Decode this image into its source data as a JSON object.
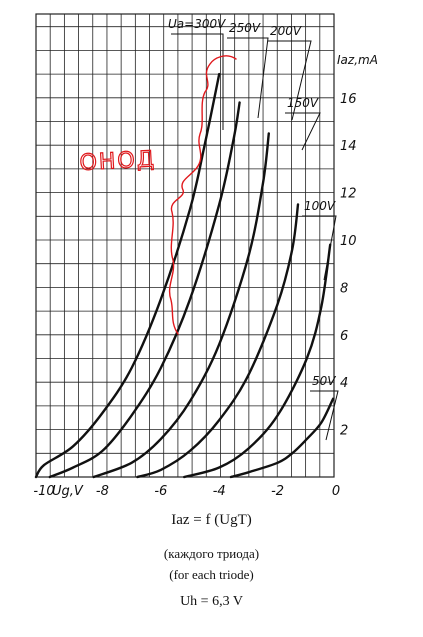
{
  "chart_data": {
    "type": "line",
    "xlabel": "Ug,V",
    "ylabel": "Iaz,mA",
    "xlim": [
      -10,
      0
    ],
    "ylim": [
      0,
      18
    ],
    "x_ticks": [
      "-10",
      "-8",
      "-6",
      "-4",
      "-2",
      "0"
    ],
    "y_ticks": [
      "2",
      "4",
      "6",
      "8",
      "10",
      "12",
      "14",
      "16"
    ],
    "grid": true,
    "series": [
      {
        "name": "Ua=300V",
        "x": [
          -11.3,
          -10,
          -9,
          -8,
          -7,
          -6,
          -5,
          -4.5,
          -4
        ],
        "y": [
          0,
          0.5,
          1.3,
          2.7,
          4.6,
          7.5,
          11.3,
          14,
          17
        ]
      },
      {
        "name": "250V",
        "x": [
          -9.8,
          -9,
          -8,
          -7,
          -6,
          -5,
          -4,
          -3.5,
          -3.3
        ],
        "y": [
          0,
          0.4,
          1.1,
          2.6,
          4.6,
          7.5,
          11.5,
          14.3,
          15.8
        ]
      },
      {
        "name": "200V",
        "x": [
          -8.3,
          -7,
          -6,
          -5,
          -4,
          -3,
          -2.5,
          -2.3
        ],
        "y": [
          0,
          0.6,
          1.6,
          3.2,
          5.6,
          9.3,
          12.4,
          14.5
        ]
      },
      {
        "name": "150V",
        "x": [
          -6.8,
          -6,
          -5,
          -4,
          -3,
          -2,
          -1.5,
          -1.3
        ],
        "y": [
          0,
          0.3,
          1.1,
          2.4,
          4.3,
          7.3,
          9.6,
          11.5
        ]
      },
      {
        "name": "100V",
        "x": [
          -5.2,
          -4,
          -3,
          -2,
          -1,
          -0.5,
          -0.2
        ],
        "y": [
          0,
          0.4,
          1.2,
          2.6,
          5,
          7.2,
          9.8
        ]
      },
      {
        "name": "50V",
        "x": [
          -3.6,
          -3,
          -2,
          -1.5,
          -1,
          -0.5,
          -0.1
        ],
        "y": [
          0,
          0.2,
          0.6,
          1,
          1.6,
          2.3,
          3.3
        ]
      }
    ],
    "curve_labels": [
      "Ua=300V",
      "250V",
      "200V",
      "150V",
      "100V",
      "50V"
    ],
    "annotation": "ОНОД",
    "annotation_color": "#e0181c",
    "line_color": "#111111",
    "grid_color": "#222222"
  },
  "caption": {
    "formula": "Iaz = f (UgT)",
    "russian": "(каждого триода)",
    "english": "(for each triode)",
    "heater": "Uh = 6,3 V"
  }
}
